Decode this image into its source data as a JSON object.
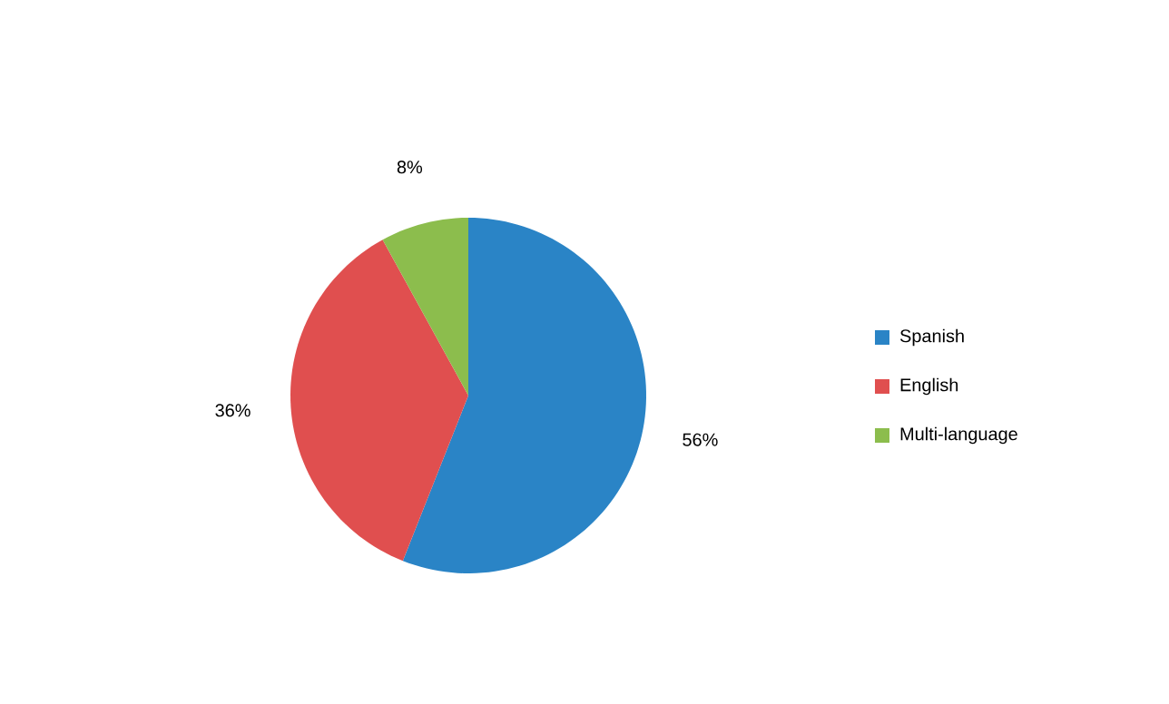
{
  "chart_data": {
    "type": "pie",
    "categories": [
      "Spanish",
      "English",
      "Multi-language"
    ],
    "values": [
      56,
      36,
      8
    ],
    "value_labels": [
      "56%",
      "36%",
      "8%"
    ],
    "colors": [
      "#2a84c6",
      "#e04f4f",
      "#8cbd4d"
    ],
    "legend": "right"
  }
}
